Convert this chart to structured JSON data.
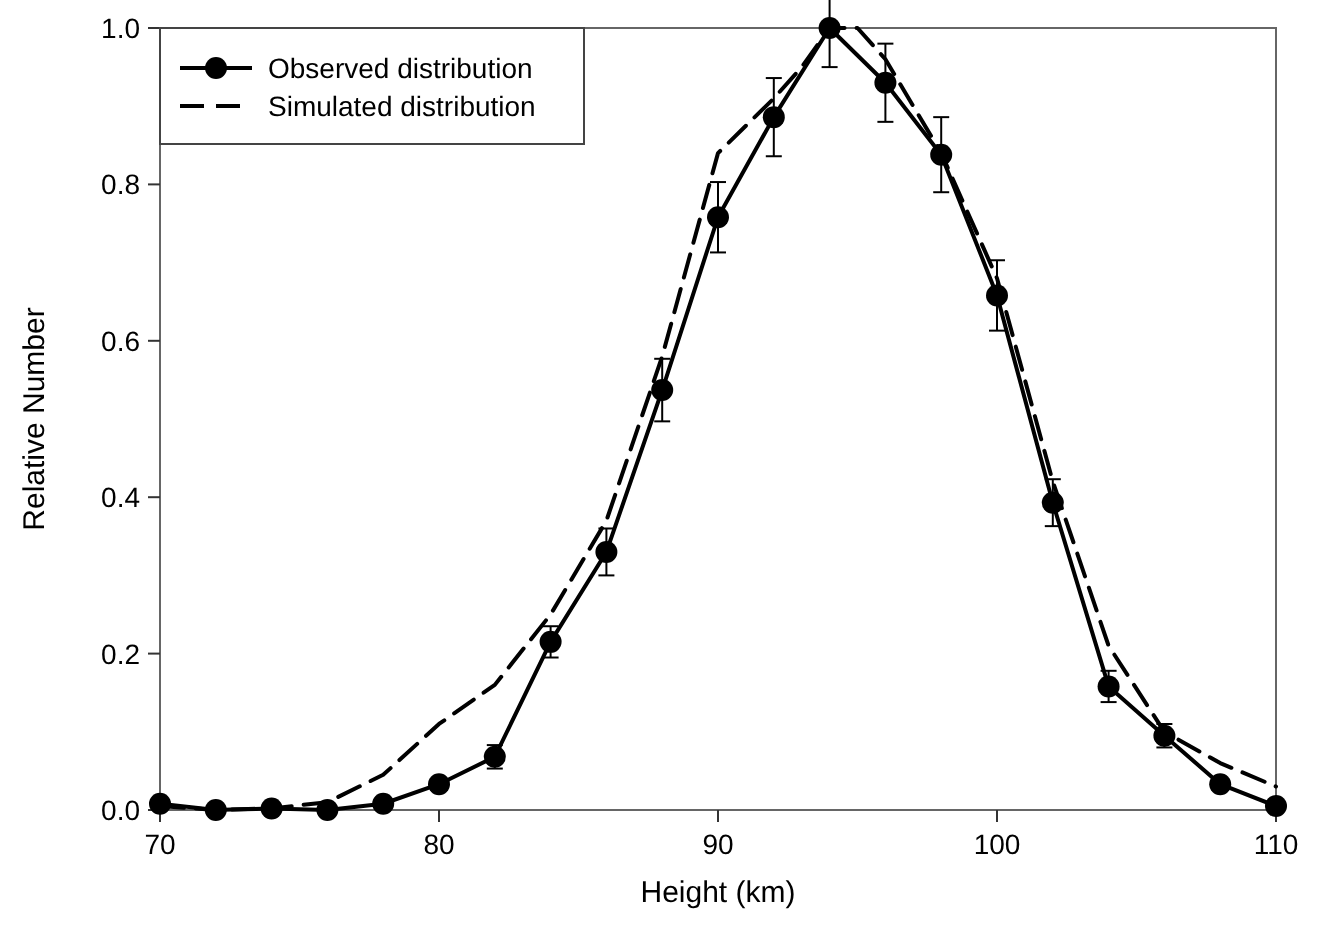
{
  "chart_data": {
    "type": "line",
    "xlabel": "Height (km)",
    "ylabel": "Relative Number",
    "xlim": [
      70,
      110
    ],
    "xticks": [
      70,
      80,
      90,
      100,
      110
    ],
    "ylim": [
      0,
      1
    ],
    "yticks": [
      {
        "value": 0,
        "label": "0.0"
      },
      {
        "value": 0.2,
        "label": "0.2"
      },
      {
        "value": 0.4,
        "label": "0.4"
      },
      {
        "value": 0.6,
        "label": "0.6"
      },
      {
        "value": 0.8,
        "label": "0.8"
      },
      {
        "value": 1,
        "label": "1.0"
      }
    ],
    "legend": "top left",
    "grid": false,
    "series": [
      {
        "name": "Observed distribution",
        "color": "#000000",
        "marker": "circle",
        "line_style": "solid",
        "x": [
          70,
          72,
          74,
          76,
          78,
          80,
          82,
          84,
          86,
          88,
          90,
          92,
          94,
          96,
          98,
          100,
          102,
          104,
          106,
          108,
          110
        ],
        "values": [
          0.008,
          0,
          0.002,
          0,
          0.008,
          0.033,
          0.068,
          0.215,
          0.33,
          0.537,
          0.758,
          0.886,
          1.0,
          0.93,
          0.838,
          0.658,
          0.393,
          0.158,
          0.095,
          0.033,
          0.005
        ],
        "errors": [
          null,
          null,
          null,
          null,
          null,
          null,
          0.015,
          0.02,
          0.03,
          0.04,
          0.045,
          0.05,
          0.05,
          0.05,
          0.048,
          0.045,
          0.03,
          0.02,
          0.015,
          null,
          null
        ]
      },
      {
        "name": "Simulated distribution",
        "color": "#000000",
        "marker": "none",
        "line_style": "dashed",
        "x": [
          70,
          72,
          74,
          76,
          78,
          80,
          82,
          84,
          86,
          88,
          90,
          92,
          93,
          94,
          95,
          96,
          98,
          100,
          102,
          104,
          106,
          108,
          110
        ],
        "values": [
          0.005,
          0,
          0.002,
          0.01,
          0.045,
          0.11,
          0.16,
          0.25,
          0.37,
          0.58,
          0.84,
          0.91,
          0.95,
          1.0,
          1.0,
          0.96,
          0.84,
          0.68,
          0.42,
          0.21,
          0.1,
          0.06,
          0.03
        ]
      }
    ]
  }
}
